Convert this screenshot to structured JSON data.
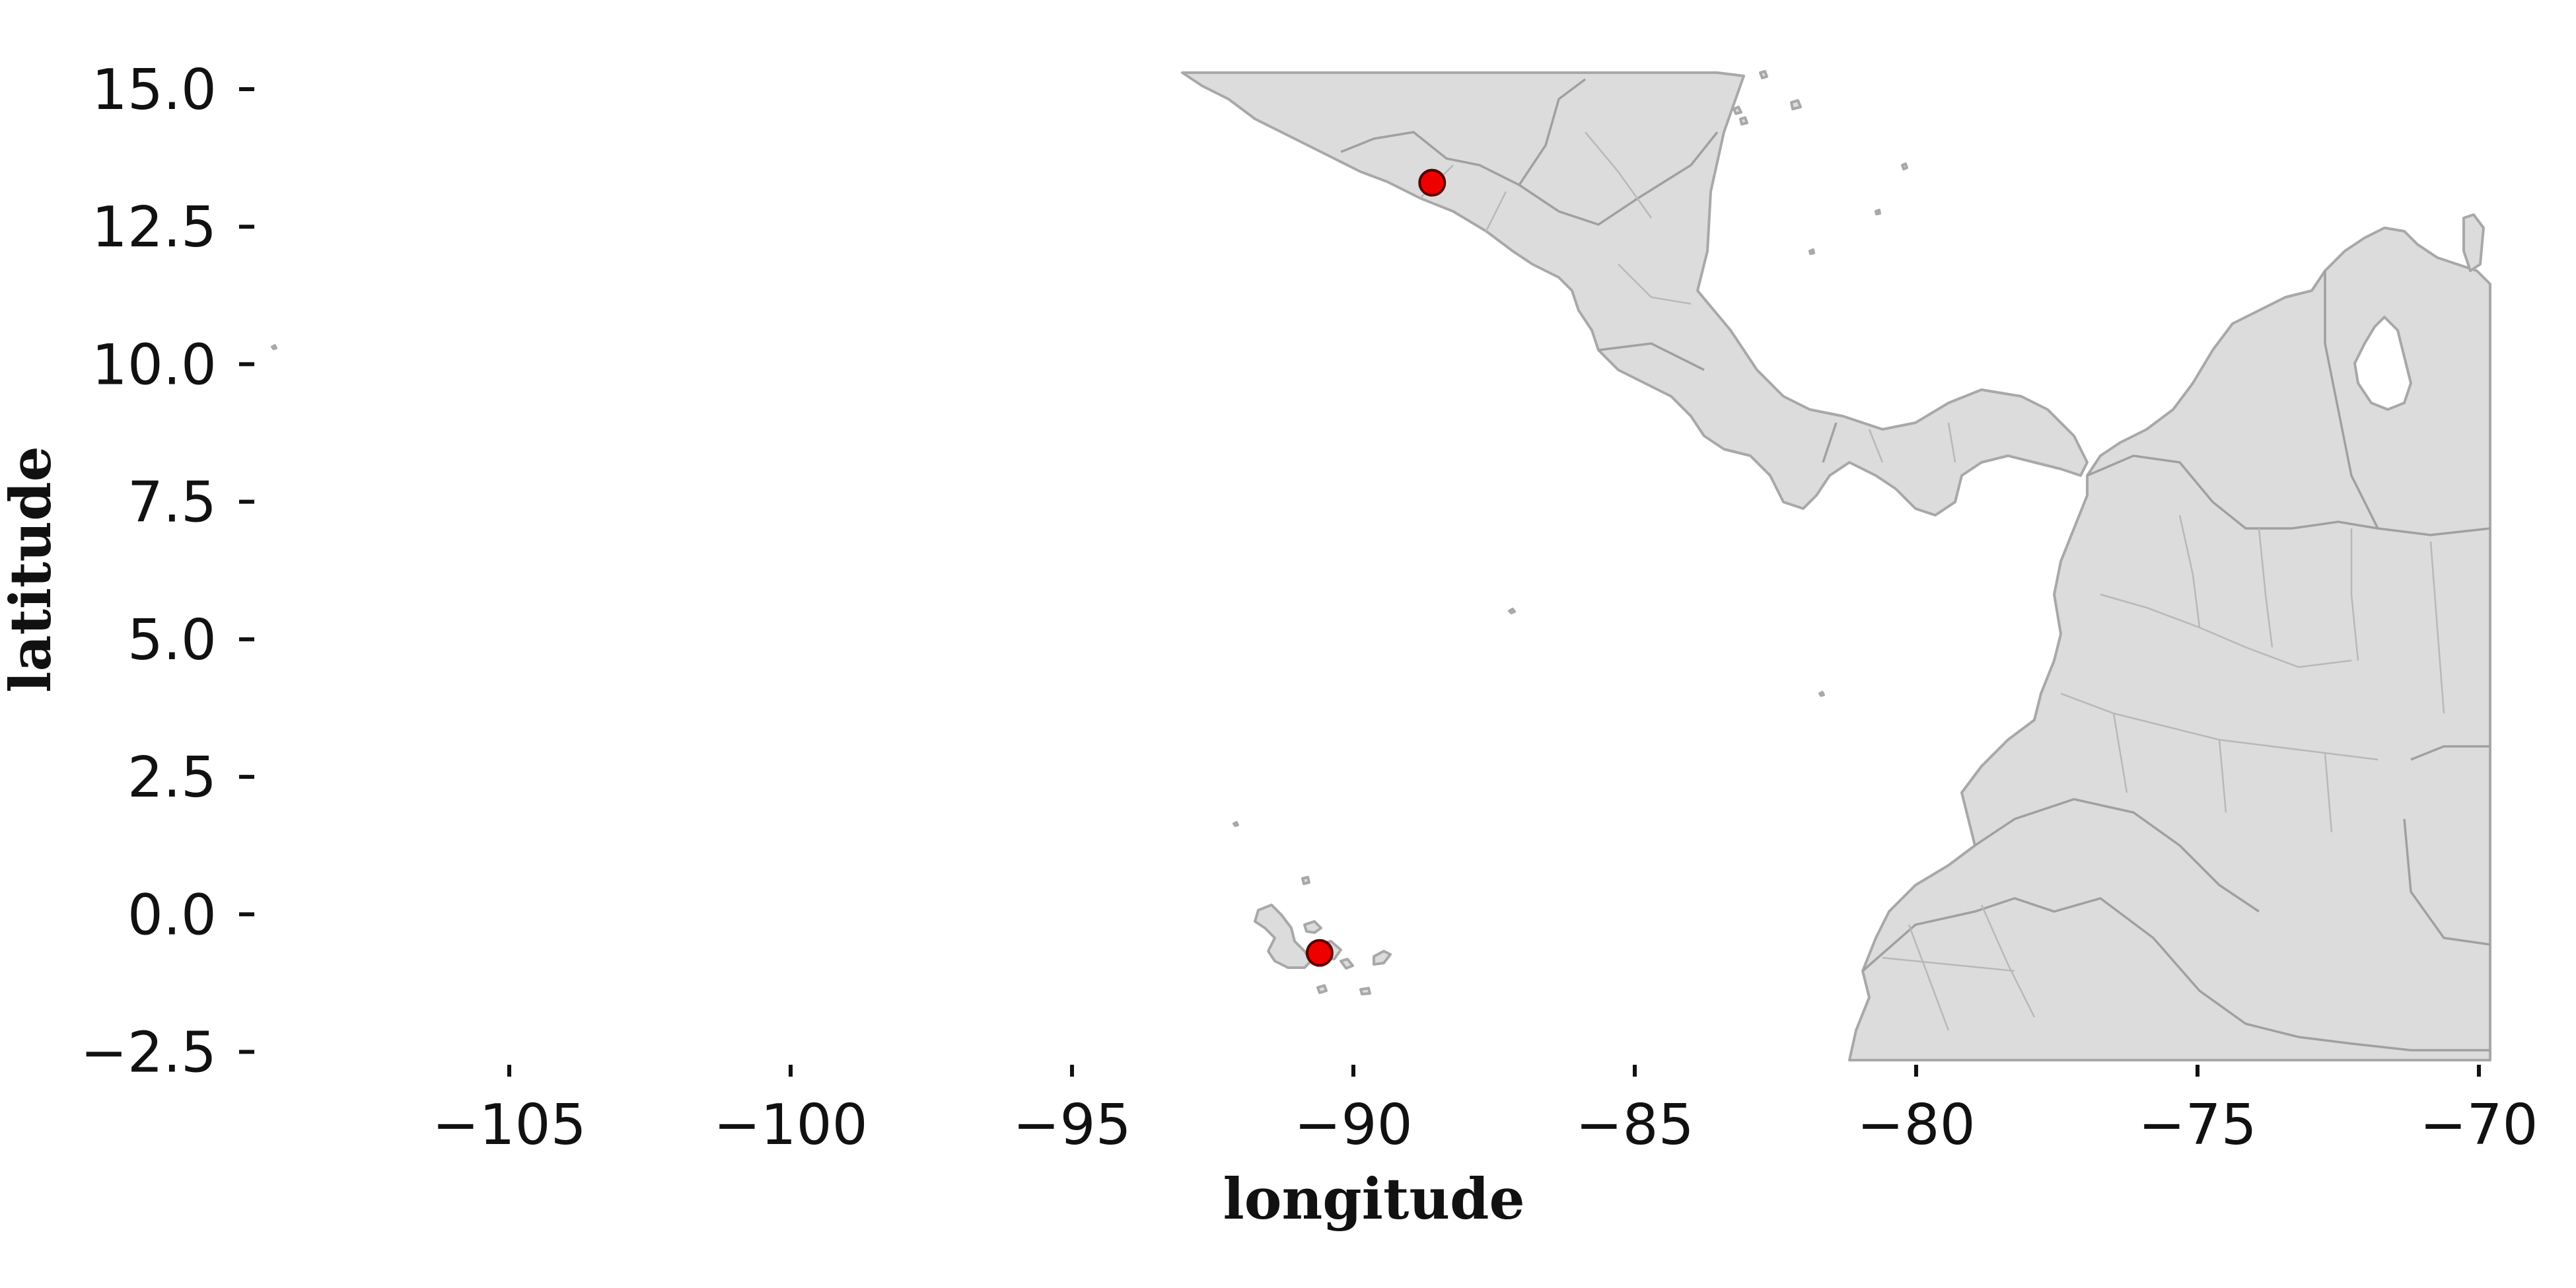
{
  "map": {
    "xlabel": "longitude",
    "ylabel": "latitude",
    "xlim": [
      -110,
      -69.8
    ],
    "ylim": [
      -2.65,
      15.3
    ],
    "x_ticks": [
      -105,
      -100,
      -95,
      -90,
      -85,
      -80,
      -75,
      -70
    ],
    "x_tick_labels": [
      "−105",
      "−100",
      "−95",
      "−90",
      "−85",
      "−80",
      "−75",
      "−70"
    ],
    "y_ticks": [
      15.0,
      12.5,
      10.0,
      7.5,
      5.0,
      2.5,
      0.0,
      -2.5
    ],
    "y_tick_labels": [
      "15.0",
      "12.5",
      "10.0",
      "7.5",
      "5.0",
      "2.5",
      "0.0",
      "−2.5"
    ],
    "land_color": "#dcdcdc",
    "land_edge_color": "#a8a8a8",
    "marker_color": "#ee0000",
    "points": [
      {
        "lon": -88.6,
        "lat": 13.3
      },
      {
        "lon": -90.6,
        "lat": -0.7
      }
    ]
  }
}
